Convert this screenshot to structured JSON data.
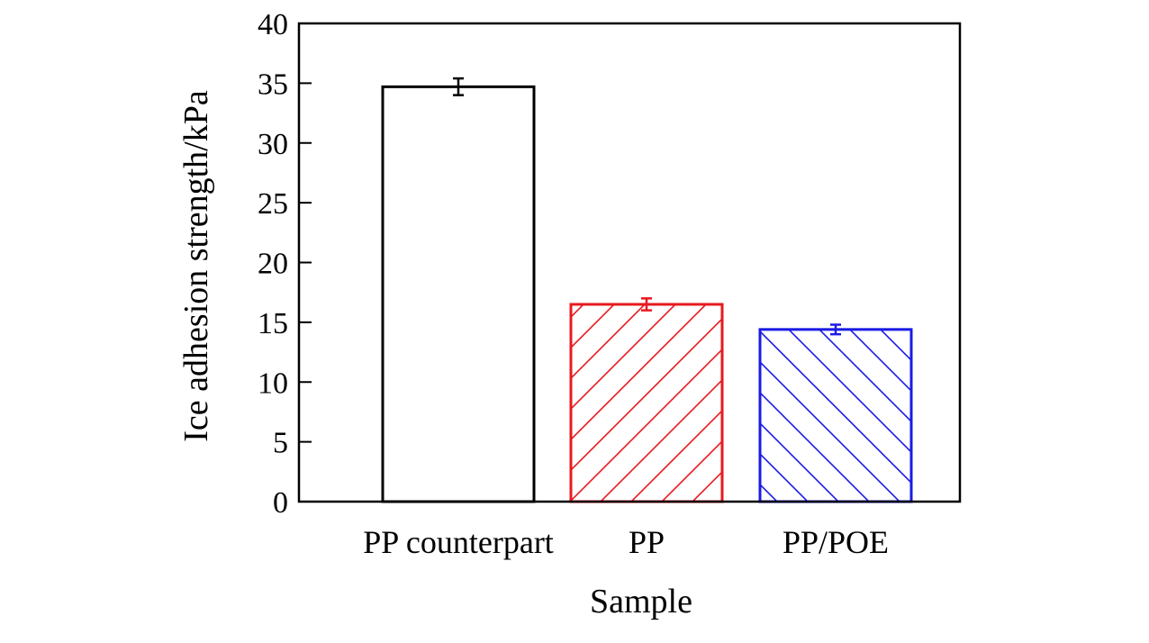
{
  "chart_data": {
    "type": "bar",
    "title": "",
    "xlabel": "Sample",
    "ylabel": "Ice adhesion strength/kPa",
    "ylim": [
      0,
      40
    ],
    "yticks": [
      0,
      5,
      10,
      15,
      20,
      25,
      30,
      35,
      40
    ],
    "ytick_labels": [
      "0",
      "5",
      "10",
      "15",
      "20",
      "25",
      "30",
      "35",
      "40"
    ],
    "grid": false,
    "legend": "none",
    "categories": [
      "PP counterpart",
      "PP",
      "PP/POE"
    ],
    "values": [
      34.7,
      16.5,
      14.4
    ],
    "errors": [
      0.7,
      0.5,
      0.4
    ],
    "colors": [
      "#000000",
      "#e8191e",
      "#1a1ae6"
    ],
    "fills": [
      "none",
      "hatch-forward",
      "hatch-back"
    ]
  }
}
